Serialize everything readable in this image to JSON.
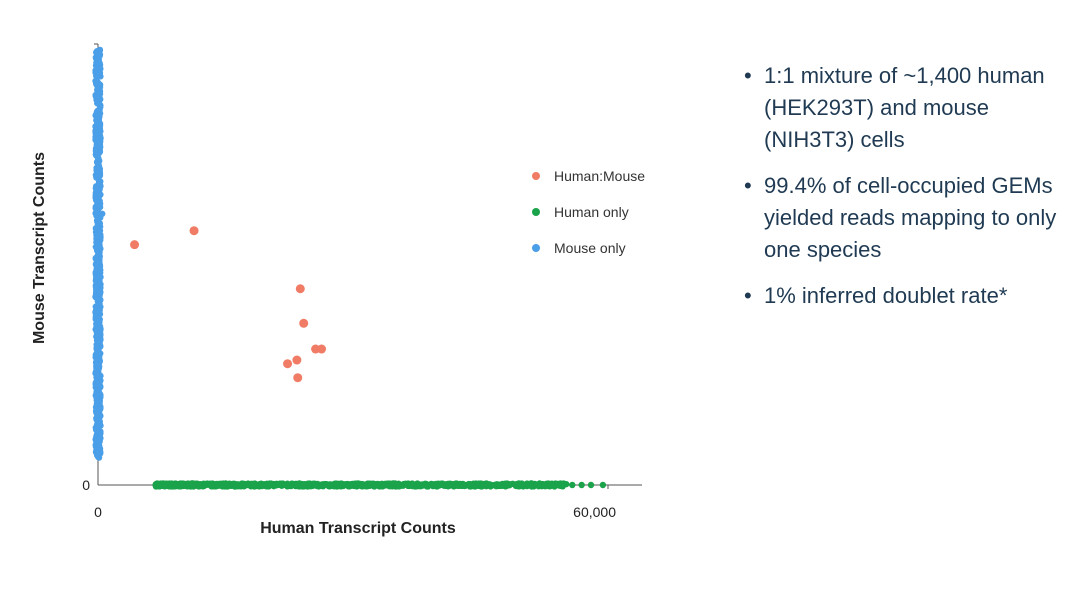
{
  "chart_data": {
    "type": "scatter",
    "xlabel": "Human Transcript Counts",
    "ylabel": "Mouse Transcript Counts",
    "xlim": [
      0,
      60000
    ],
    "ylim": [
      0,
      60000
    ],
    "x_ticks": [
      {
        "value": 0,
        "label": "0"
      },
      {
        "value": 60000,
        "label": "60,000"
      }
    ],
    "y_ticks": [
      {
        "value": 0,
        "label": "0"
      }
    ],
    "grid": false,
    "legend_position": "right",
    "series": [
      {
        "name": "Human:Mouse",
        "color": "#f07c66",
        "points": [
          {
            "x": 4300,
            "y": 32700
          },
          {
            "x": 11300,
            "y": 34600
          },
          {
            "x": 23400,
            "y": 17000
          },
          {
            "x": 22300,
            "y": 16500
          },
          {
            "x": 23500,
            "y": 14600
          },
          {
            "x": 23800,
            "y": 26700
          },
          {
            "x": 24200,
            "y": 22000
          },
          {
            "x": 25600,
            "y": 18500
          },
          {
            "x": 26300,
            "y": 18500
          }
        ]
      },
      {
        "name": "Human only",
        "color": "#1aa34a",
        "x_range": [
          6800,
          59400
        ],
        "y": 0
      },
      {
        "name": "Mouse only",
        "color": "#4a9fe8",
        "x": 0,
        "y_range": [
          3700,
          60000
        ]
      }
    ]
  },
  "bullets": [
    "1:1 mixture of ~1,400 human (HEK293T) and mouse (NIH3T3) cells",
    "99.4% of cell-occupied GEMs yielded reads mapping to only one species",
    "1% inferred doublet rate*"
  ],
  "bullet_glyph": "•"
}
